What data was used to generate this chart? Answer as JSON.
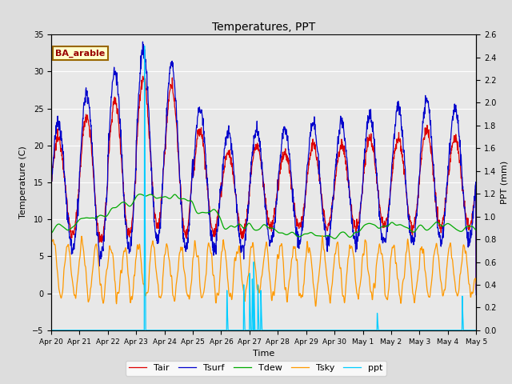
{
  "title": "Temperatures, PPT",
  "xlabel": "Time",
  "ylabel_left": "Temperature (C)",
  "ylabel_right": "PPT (mm)",
  "annotation": "BA_arable",
  "ylim_left": [
    -5,
    35
  ],
  "ylim_right": [
    0.0,
    2.6
  ],
  "yticks_left": [
    -5,
    0,
    5,
    10,
    15,
    20,
    25,
    30,
    35
  ],
  "yticks_right": [
    0.0,
    0.2,
    0.4,
    0.6,
    0.8,
    1.0,
    1.2,
    1.4,
    1.6,
    1.8,
    2.0,
    2.2,
    2.4,
    2.6
  ],
  "x_tick_labels": [
    "Apr 20",
    "Apr 21",
    "Apr 22",
    "Apr 23",
    "Apr 24",
    "Apr 25",
    "Apr 26",
    "Apr 27",
    "Apr 28",
    "Apr 29",
    "Apr 30",
    "May 1",
    "May 2",
    "May 3",
    "May 4",
    "May 5"
  ],
  "line_colors": {
    "Tair": "#dd0000",
    "Tsurf": "#0000cc",
    "Tdew": "#00aa00",
    "Tsky": "#ff9900",
    "ppt": "#00ccff"
  },
  "background_color": "#dddddd",
  "plot_bg_color": "#e8e8e8",
  "n_days": 15,
  "pts_per_day": 96
}
